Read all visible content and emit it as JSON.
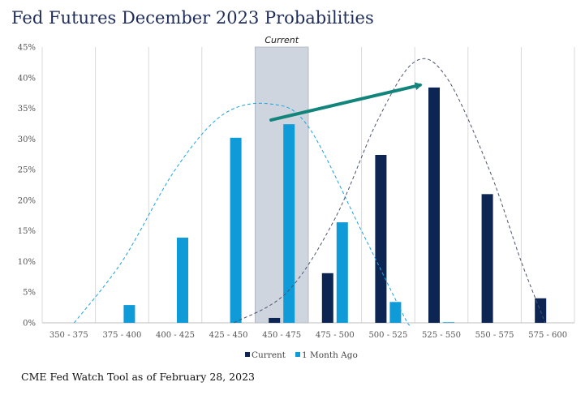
{
  "page": {
    "title": "Fed Futures December 2023 Probabilities",
    "source": "CME Fed Watch Tool as of  February 28, 2023"
  },
  "chart_data": {
    "type": "bar",
    "title": "Fed Futures December 2023 Probabilities",
    "xlabel": "",
    "ylabel": "",
    "ylim": [
      0,
      45
    ],
    "y_ticks": [
      "0%",
      "5%",
      "10%",
      "15%",
      "20%",
      "25%",
      "30%",
      "35%",
      "40%",
      "45%"
    ],
    "y_tick_values": [
      0,
      5,
      10,
      15,
      20,
      25,
      30,
      35,
      40,
      45
    ],
    "categories": [
      "350 - 375",
      "375 - 400",
      "400 - 425",
      "425 - 450",
      "450 - 475",
      "475 - 500",
      "500 - 525",
      "525 - 550",
      "550 - 575",
      "575 - 600"
    ],
    "series": [
      {
        "name": "Current",
        "color": "#0d2552",
        "values": [
          0,
          0,
          0,
          0,
          0.8,
          8.1,
          27.4,
          38.4,
          21.0,
          4.0
        ]
      },
      {
        "name": "1 Month Ago",
        "color": "#0f9ad8",
        "values": [
          0,
          2.9,
          13.9,
          30.2,
          32.4,
          16.4,
          3.4,
          0.1,
          0,
          0
        ]
      }
    ],
    "curves": [
      {
        "series": "1 Month Ago",
        "style": "dashed",
        "color": "#1aa3e0",
        "points": [
          [
            0.6,
            0
          ],
          [
            1.5,
            10
          ],
          [
            2.5,
            25
          ],
          [
            3.4,
            34
          ],
          [
            4.3,
            35.7
          ],
          [
            5.0,
            32
          ],
          [
            6.0,
            15
          ],
          [
            6.8,
            1
          ],
          [
            6.9,
            0
          ]
        ]
      },
      {
        "series": "Current",
        "style": "dashed",
        "color": "#4a5470",
        "points": [
          [
            3.6,
            0
          ],
          [
            4.6,
            5
          ],
          [
            5.5,
            17
          ],
          [
            6.3,
            33
          ],
          [
            7.0,
            42.6
          ],
          [
            7.6,
            40
          ],
          [
            8.4,
            25
          ],
          [
            9.0,
            10
          ],
          [
            9.45,
            0
          ]
        ]
      }
    ],
    "highlight": {
      "category": "450 - 475",
      "label": "Current",
      "color": "#cfd5de"
    },
    "arrow": {
      "from": [
        4.3,
        33.1
      ],
      "to": [
        7.1,
        38.8
      ],
      "color": "#11857c"
    },
    "legend": {
      "position": "bottom",
      "entries": [
        "Current",
        "1 Month Ago"
      ]
    },
    "grid": {
      "vertical": true,
      "horizontal": false,
      "color": "#d9d9d9"
    }
  }
}
